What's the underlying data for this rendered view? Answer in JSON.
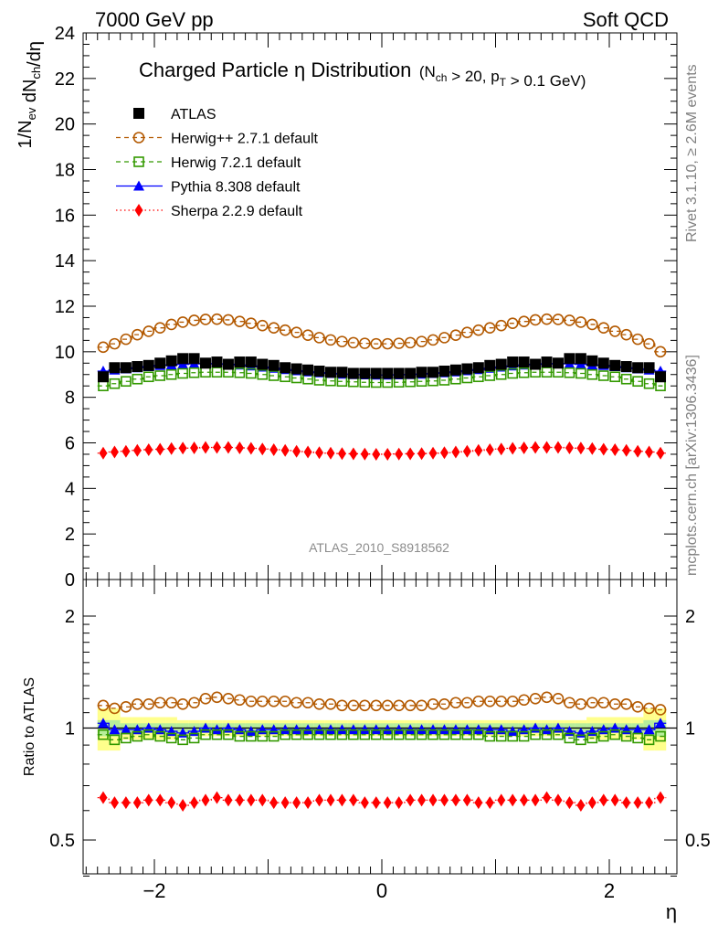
{
  "header": {
    "left": "7000 GeV pp",
    "right": "Soft QCD"
  },
  "side_labels": {
    "rivet": "Rivet 3.1.10, ≥ 2.6M events",
    "mcplots": "mcplots.cern.ch [arXiv:1306.3436]"
  },
  "chart_data": {
    "type": "scatter",
    "title": "Charged Particle η Distribution",
    "subtitle": "(N_ch > 20, p_T > 0.1 GeV)",
    "analysis_id": "ATLAS_2010_S8918562",
    "xlabel": "η",
    "ylabel": "1/N_ev dN_ch/dη",
    "ratio_ylabel": "Ratio to ATLAS",
    "xlim": [
      -2.6,
      2.6
    ],
    "ylim": [
      0,
      24
    ],
    "ratio_ylim": [
      0.4,
      2.3
    ],
    "x_ticks": [
      "−2",
      "0",
      "2"
    ],
    "y_ticks": [
      "0",
      "2",
      "4",
      "6",
      "8",
      "10",
      "12",
      "14",
      "16",
      "18",
      "20",
      "22",
      "24"
    ],
    "ratio_ticks": [
      "0.5",
      "1",
      "2"
    ],
    "legend_position": "top-left",
    "x": [
      -2.45,
      -2.35,
      -2.25,
      -2.15,
      -2.05,
      -1.95,
      -1.85,
      -1.75,
      -1.65,
      -1.55,
      -1.45,
      -1.35,
      -1.25,
      -1.15,
      -1.05,
      -0.95,
      -0.85,
      -0.75,
      -0.65,
      -0.55,
      -0.45,
      -0.35,
      -0.25,
      -0.15,
      -0.05,
      0.05,
      0.15,
      0.25,
      0.35,
      0.45,
      0.55,
      0.65,
      0.75,
      0.85,
      0.95,
      1.05,
      1.15,
      1.25,
      1.35,
      1.45,
      1.55,
      1.65,
      1.75,
      1.85,
      1.95,
      2.05,
      2.15,
      2.25,
      2.35,
      2.45
    ],
    "series": [
      {
        "name": "ATLAS",
        "color": "#000000",
        "marker": "filled-square",
        "line": "none",
        "values": [
          8.9,
          9.3,
          9.3,
          9.35,
          9.4,
          9.5,
          9.6,
          9.7,
          9.7,
          9.5,
          9.55,
          9.45,
          9.55,
          9.55,
          9.45,
          9.4,
          9.3,
          9.25,
          9.2,
          9.15,
          9.1,
          9.1,
          9.05,
          9.05,
          9.05,
          9.05,
          9.05,
          9.05,
          9.1,
          9.1,
          9.15,
          9.2,
          9.25,
          9.3,
          9.4,
          9.45,
          9.55,
          9.55,
          9.45,
          9.55,
          9.5,
          9.7,
          9.7,
          9.6,
          9.5,
          9.4,
          9.35,
          9.3,
          9.3,
          8.9
        ]
      },
      {
        "name": "Herwig++ 2.7.1 default",
        "color": "#b35900",
        "marker": "open-circle",
        "line": "dashed",
        "values": [
          10.2,
          10.35,
          10.55,
          10.75,
          10.9,
          11.05,
          11.2,
          11.3,
          11.38,
          11.42,
          11.43,
          11.4,
          11.33,
          11.25,
          11.15,
          11.05,
          10.95,
          10.85,
          10.73,
          10.62,
          10.52,
          10.45,
          10.4,
          10.37,
          10.35,
          10.35,
          10.37,
          10.4,
          10.45,
          10.52,
          10.62,
          10.73,
          10.85,
          10.95,
          11.05,
          11.15,
          11.25,
          11.33,
          11.4,
          11.43,
          11.42,
          11.38,
          11.3,
          11.2,
          11.05,
          10.9,
          10.75,
          10.55,
          10.35,
          10.0
        ],
        "ratio": [
          1.15,
          1.13,
          1.14,
          1.16,
          1.16,
          1.17,
          1.17,
          1.16,
          1.17,
          1.2,
          1.21,
          1.2,
          1.19,
          1.18,
          1.18,
          1.18,
          1.18,
          1.17,
          1.17,
          1.16,
          1.16,
          1.15,
          1.15,
          1.15,
          1.15,
          1.15,
          1.15,
          1.15,
          1.15,
          1.16,
          1.16,
          1.17,
          1.17,
          1.18,
          1.18,
          1.18,
          1.18,
          1.19,
          1.2,
          1.21,
          1.2,
          1.17,
          1.16,
          1.17,
          1.17,
          1.16,
          1.16,
          1.14,
          1.13,
          1.12
        ]
      },
      {
        "name": "Herwig 7.2.1 default",
        "color": "#339900",
        "marker": "open-square",
        "line": "dashed",
        "values": [
          8.5,
          8.6,
          8.7,
          8.8,
          8.9,
          8.95,
          9.0,
          9.05,
          9.08,
          9.1,
          9.1,
          9.1,
          9.08,
          9.05,
          9.0,
          8.95,
          8.9,
          8.85,
          8.8,
          8.75,
          8.72,
          8.7,
          8.68,
          8.66,
          8.65,
          8.65,
          8.66,
          8.68,
          8.7,
          8.72,
          8.75,
          8.8,
          8.85,
          8.9,
          8.95,
          9.0,
          9.05,
          9.08,
          9.1,
          9.1,
          9.1,
          9.08,
          9.05,
          9.0,
          8.95,
          8.9,
          8.8,
          8.7,
          8.6,
          8.5
        ],
        "ratio": [
          0.96,
          0.93,
          0.94,
          0.95,
          0.96,
          0.95,
          0.94,
          0.93,
          0.94,
          0.96,
          0.96,
          0.96,
          0.95,
          0.95,
          0.95,
          0.95,
          0.96,
          0.96,
          0.96,
          0.96,
          0.96,
          0.96,
          0.96,
          0.96,
          0.96,
          0.96,
          0.96,
          0.96,
          0.96,
          0.96,
          0.96,
          0.96,
          0.96,
          0.96,
          0.95,
          0.95,
          0.95,
          0.95,
          0.96,
          0.96,
          0.96,
          0.94,
          0.93,
          0.94,
          0.95,
          0.96,
          0.95,
          0.94,
          0.93,
          0.95
        ]
      },
      {
        "name": "Pythia 8.308 default",
        "color": "#0000ff",
        "marker": "filled-triangle",
        "line": "solid",
        "values": [
          9.15,
          9.2,
          9.25,
          9.3,
          9.35,
          9.4,
          9.42,
          9.45,
          9.47,
          9.48,
          9.47,
          9.45,
          9.42,
          9.38,
          9.33,
          9.28,
          9.22,
          9.17,
          9.12,
          9.08,
          9.05,
          9.02,
          9.0,
          8.99,
          8.98,
          8.98,
          8.99,
          9.0,
          9.02,
          9.05,
          9.08,
          9.12,
          9.17,
          9.22,
          9.28,
          9.33,
          9.38,
          9.42,
          9.45,
          9.47,
          9.48,
          9.47,
          9.45,
          9.42,
          9.4,
          9.35,
          9.3,
          9.25,
          9.2,
          9.15
        ],
        "ratio": [
          1.03,
          0.99,
          0.99,
          0.99,
          1.0,
          0.99,
          0.98,
          0.97,
          0.98,
          1.0,
          0.99,
          1.0,
          0.99,
          0.98,
          0.99,
          0.99,
          0.99,
          0.99,
          0.99,
          0.99,
          0.99,
          0.99,
          0.99,
          0.99,
          0.99,
          0.99,
          0.99,
          0.99,
          0.99,
          0.99,
          0.99,
          0.99,
          0.99,
          0.99,
          0.99,
          0.99,
          0.98,
          0.99,
          1.0,
          0.99,
          1.0,
          0.98,
          0.97,
          0.98,
          0.99,
          1.0,
          0.99,
          0.99,
          0.99,
          1.03
        ]
      },
      {
        "name": "Sherpa 2.2.9 default",
        "color": "#ff0000",
        "marker": "filled-diamond",
        "line": "dotted",
        "values": [
          5.55,
          5.6,
          5.63,
          5.67,
          5.7,
          5.72,
          5.75,
          5.77,
          5.78,
          5.8,
          5.8,
          5.8,
          5.78,
          5.76,
          5.73,
          5.7,
          5.67,
          5.63,
          5.6,
          5.57,
          5.55,
          5.53,
          5.52,
          5.51,
          5.5,
          5.5,
          5.51,
          5.52,
          5.53,
          5.55,
          5.57,
          5.6,
          5.63,
          5.67,
          5.7,
          5.73,
          5.76,
          5.78,
          5.8,
          5.8,
          5.8,
          5.78,
          5.77,
          5.75,
          5.72,
          5.7,
          5.67,
          5.63,
          5.6,
          5.55
        ],
        "ratio": [
          0.65,
          0.63,
          0.63,
          0.63,
          0.64,
          0.64,
          0.63,
          0.62,
          0.63,
          0.64,
          0.65,
          0.64,
          0.64,
          0.64,
          0.64,
          0.63,
          0.63,
          0.63,
          0.63,
          0.64,
          0.64,
          0.64,
          0.64,
          0.63,
          0.63,
          0.63,
          0.63,
          0.64,
          0.64,
          0.64,
          0.64,
          0.64,
          0.64,
          0.63,
          0.63,
          0.64,
          0.64,
          0.64,
          0.64,
          0.65,
          0.64,
          0.63,
          0.62,
          0.63,
          0.64,
          0.64,
          0.63,
          0.63,
          0.63,
          0.65
        ]
      }
    ]
  }
}
